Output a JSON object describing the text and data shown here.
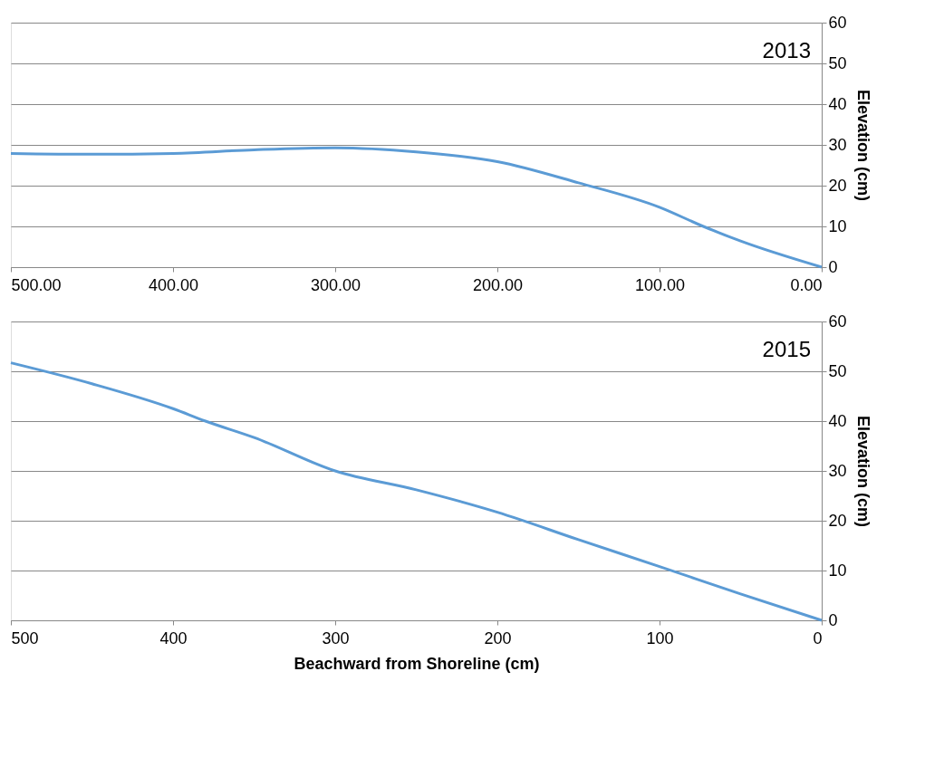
{
  "chart_data": [
    {
      "type": "line",
      "ylabel": "Elevation (cm)",
      "annotations": [
        "2013"
      ],
      "grid": "y",
      "line_style": "solid",
      "marker": "none",
      "x": [
        500,
        450,
        400,
        350,
        300,
        250,
        200,
        150,
        100,
        73,
        50,
        0
      ],
      "series": [
        {
          "color": "#5b9bd5",
          "values": [
            27.9,
            27.7,
            27.9,
            28.8,
            29.3,
            28.3,
            25.9,
            20.7,
            14.7,
            10,
            6.4,
            0
          ]
        }
      ],
      "xlim": [
        500,
        0
      ],
      "xticks": [
        {
          "value": 500,
          "label": "500.00"
        },
        {
          "value": 400,
          "label": "400.00"
        },
        {
          "value": 300,
          "label": "300.00"
        },
        {
          "value": 200,
          "label": "200.00"
        },
        {
          "value": 100,
          "label": "100.00"
        },
        {
          "value": 0,
          "label": "0.00"
        }
      ],
      "ylim": [
        0,
        60
      ],
      "yticks": [
        0,
        10,
        20,
        30,
        40,
        50,
        60
      ]
    },
    {
      "type": "line",
      "ylabel": "Elevation (cm)",
      "xlabel": "Beachward from Shoreline (cm)",
      "annotations": [
        "2015"
      ],
      "grid": "y",
      "line_style": "solid",
      "marker": "none",
      "x": [
        500,
        450,
        400,
        380,
        350,
        300,
        250,
        200,
        150,
        100,
        50,
        0
      ],
      "series": [
        {
          "color": "#5b9bd5",
          "values": [
            51.7,
            47.5,
            42.5,
            40,
            36.7,
            30,
            26.2,
            21.7,
            16.2,
            10.8,
            5.3,
            0
          ]
        }
      ],
      "xlim": [
        500,
        0
      ],
      "xticks": [
        500,
        400,
        300,
        200,
        100,
        0
      ],
      "ylim": [
        0,
        60
      ],
      "yticks": [
        0,
        10,
        20,
        30,
        40,
        50,
        60
      ]
    }
  ]
}
